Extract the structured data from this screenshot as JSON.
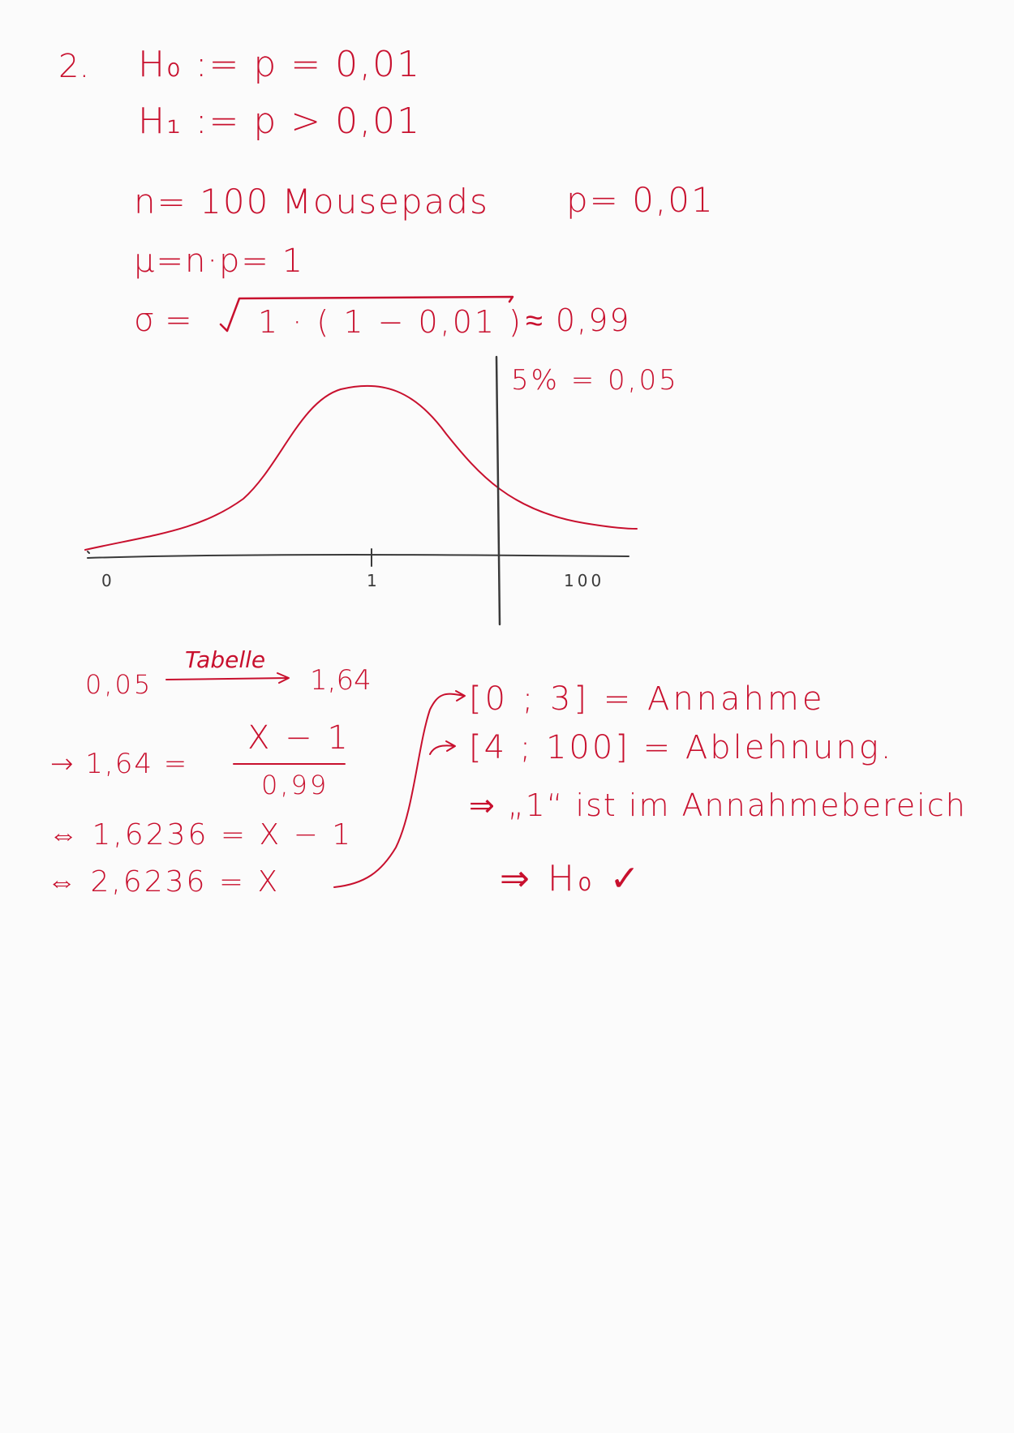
{
  "exercise_number": "2.",
  "hypotheses": {
    "h0": "H₀ := p = 0,01",
    "h1": "H₁ := p > 0,01"
  },
  "given": {
    "n_line": "n= 100 Mousepads",
    "p_line": "p= 0,01",
    "mu_line": "μ=n·p= 1",
    "sigma_lhs": "σ =",
    "sigma_radicand": "1 · ( 1 − 0,01 )",
    "sigma_result": "≈ 0,99"
  },
  "sketch": {
    "alpha_label": "5% = 0,05",
    "axis_labels": [
      "0",
      "1",
      "100"
    ]
  },
  "calculation": {
    "table_input": "0,05",
    "table_word": "Tabelle",
    "table_result": "1,64",
    "eq1_lhs": "→ 1,64 =",
    "eq1_numerator": "X − 1",
    "eq1_denominator": "0,99",
    "eq2": "⇔ 1,6236 = X − 1",
    "eq3": "⇔ 2,6236 = X"
  },
  "decision": {
    "acceptance": "[0 ; 3] = Annahme",
    "rejection": "[4 ; 100] = Ablehnung.",
    "conclusion": "⇒ „1“ ist im Annahmebereich",
    "final": "⇒ H₀ ✓"
  },
  "colors": {
    "ink": "#c8102e",
    "axis": "#3a3a3a",
    "paper": "#fbfbfb"
  }
}
